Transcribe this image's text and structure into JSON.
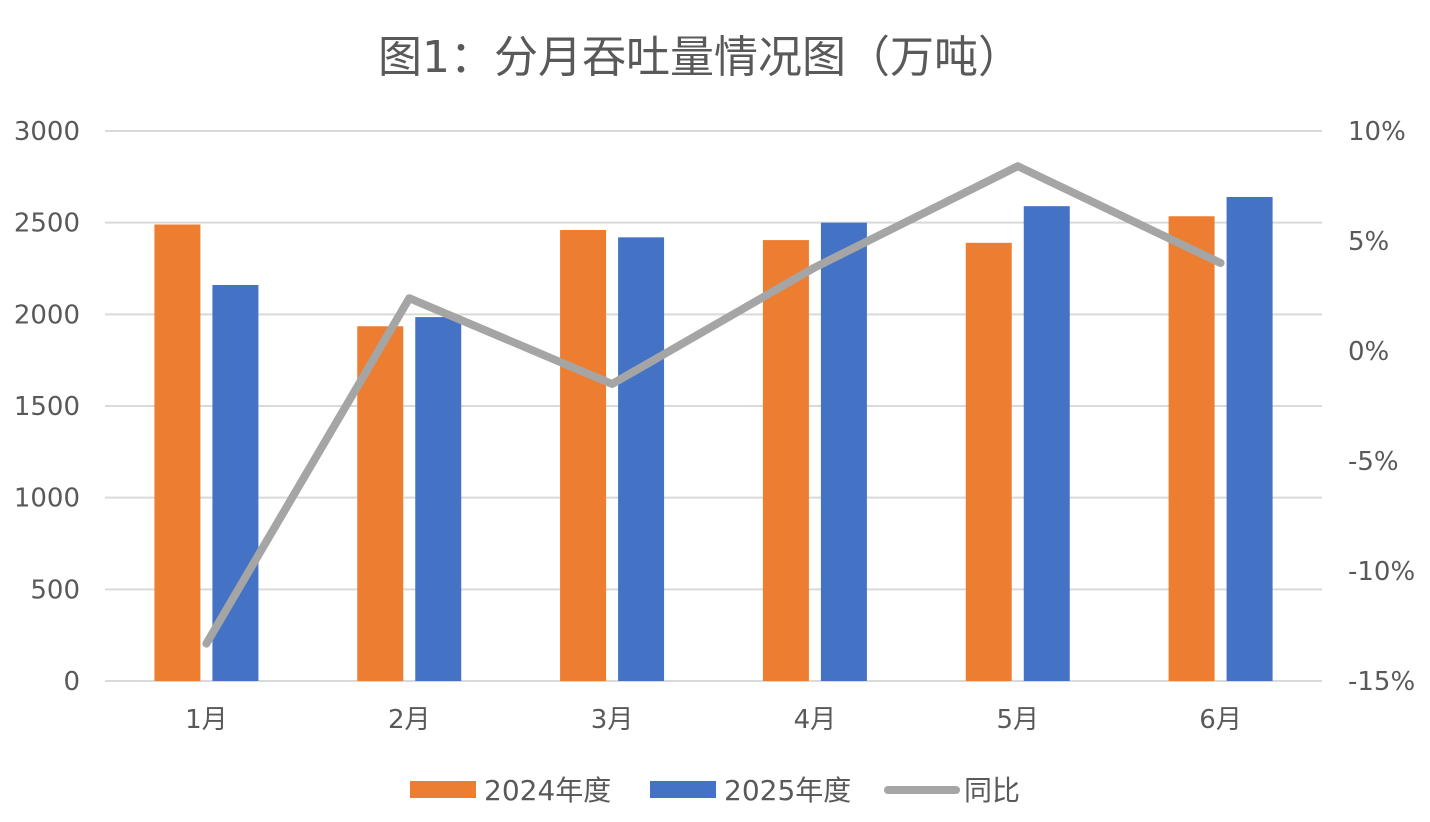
{
  "chart_data": {
    "type": "bar",
    "title": "图1：分月吞吐量情况图（万吨）",
    "categories": [
      "1月",
      "2月",
      "3月",
      "4月",
      "5月",
      "6月"
    ],
    "series": [
      {
        "name": "2024年度",
        "type": "bar",
        "axis": "left",
        "color": "#ED7D31",
        "values": [
          2490,
          1935,
          2460,
          2405,
          2390,
          2535
        ]
      },
      {
        "name": "2025年度",
        "type": "bar",
        "axis": "left",
        "color": "#4472C4",
        "values": [
          2160,
          1985,
          2420,
          2500,
          2590,
          2640
        ]
      },
      {
        "name": "同比",
        "type": "line",
        "axis": "right",
        "color": "#A5A5A5",
        "values": [
          -13.3,
          2.4,
          -1.5,
          3.8,
          8.4,
          4.0
        ]
      }
    ],
    "left_axis": {
      "min": 0,
      "max": 3000,
      "ticks": [
        0,
        500,
        1000,
        1500,
        2000,
        2500,
        3000
      ],
      "tick_labels": [
        "0",
        "500",
        "1000",
        "1500",
        "2000",
        "2500",
        "3000"
      ]
    },
    "right_axis": {
      "min": -15,
      "max": 10,
      "ticks": [
        -15,
        -10,
        -5,
        0,
        5,
        10
      ],
      "tick_labels": [
        "-15%",
        "-10%",
        "-5%",
        "0%",
        "5%",
        "10%"
      ]
    },
    "grid": true,
    "legend": "bottom"
  }
}
